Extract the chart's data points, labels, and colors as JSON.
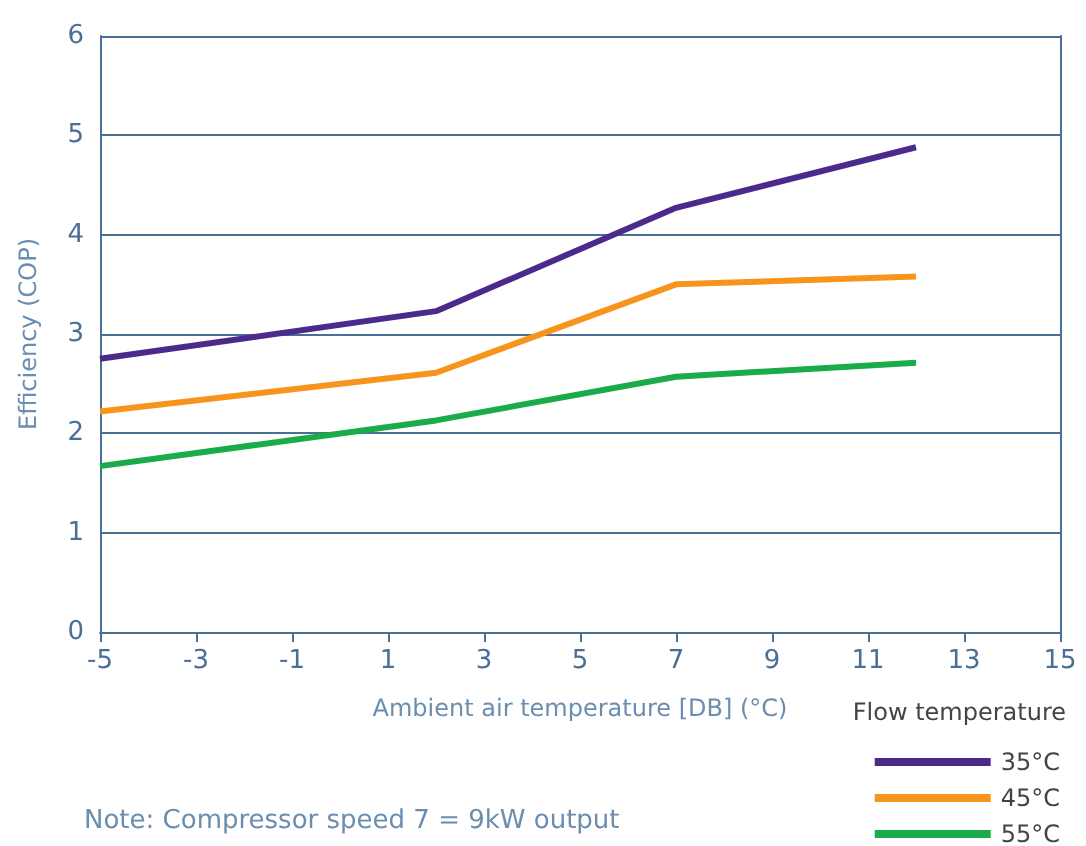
{
  "chart_data": {
    "type": "line",
    "xlabel": "Ambient air temperature [DB] (°C)",
    "ylabel": "Efficiency (COP)",
    "legend_title": "Flow temperature",
    "x": [
      -5,
      2,
      7,
      12
    ],
    "series": [
      {
        "name": "35°C",
        "color": "#4b2a8c",
        "values": [
          2.75,
          3.23,
          4.27,
          4.88
        ]
      },
      {
        "name": "45°C",
        "color": "#f7941d",
        "values": [
          2.22,
          2.61,
          3.5,
          3.58
        ]
      },
      {
        "name": "55°C",
        "color": "#1aab4b",
        "values": [
          1.67,
          2.13,
          2.57,
          2.71
        ]
      }
    ],
    "xlim": [
      -5,
      15
    ],
    "xticks": [
      -5,
      -3,
      -1,
      1,
      3,
      5,
      7,
      9,
      11,
      13,
      15
    ],
    "ylim": [
      0,
      6
    ],
    "yticks": [
      0,
      1,
      2,
      3,
      4,
      5,
      6
    ],
    "grid": "y",
    "legend": "bottom right",
    "marker": "none",
    "line_style": "solid",
    "annotations": [
      "Note: Compressor speed 7 = 9kW output"
    ]
  }
}
